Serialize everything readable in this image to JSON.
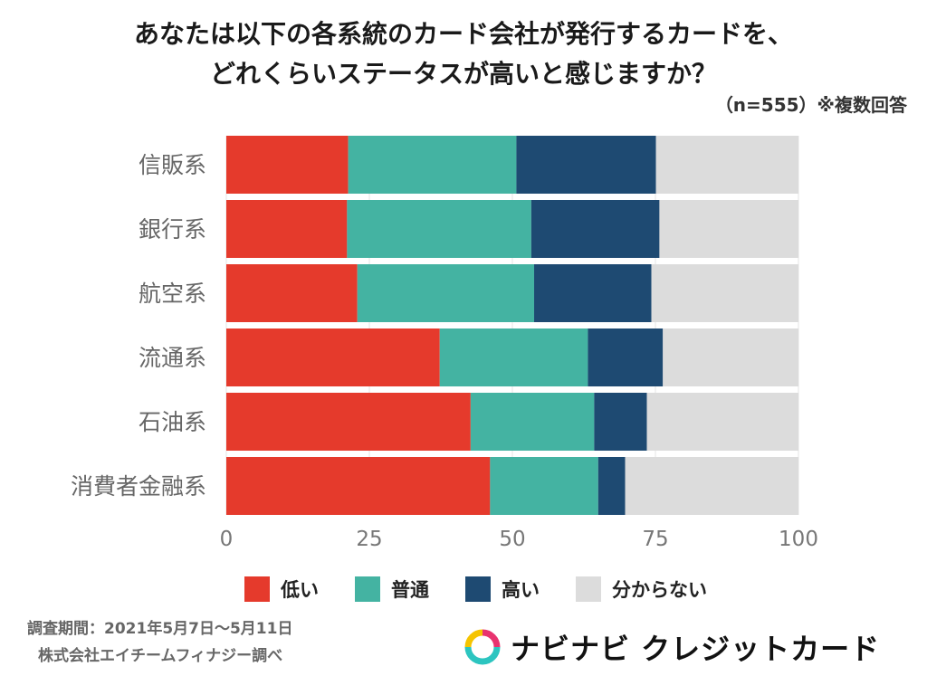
{
  "title_line1": "あなたは以下の各系統のカード会社が発行するカードを、",
  "title_line2": "どれくらいステータスが高いと感じますか？",
  "note": "（n=555）※複数回答",
  "footer": {
    "period": "調査期間：2021年5月7日〜5月11日",
    "surveyor": "株式会社エイチームフィナジー調べ"
  },
  "logo_text": "ナビナビ クレジットカード",
  "colors": {
    "低い": "#e53a2c",
    "普通": "#44b3a2",
    "高い": "#1e4a72",
    "分からない": "#dcdcdc"
  },
  "chart_data": {
    "type": "bar",
    "orientation": "horizontal",
    "stacked": true,
    "categories": [
      "信販系",
      "銀行系",
      "航空系",
      "流通系",
      "石油系",
      "消費者金融系"
    ],
    "series": [
      {
        "name": "低い",
        "values": [
          21.3,
          21.1,
          22.9,
          37.3,
          42.7,
          46.1
        ]
      },
      {
        "name": "普通",
        "values": [
          29.4,
          32.2,
          30.9,
          25.9,
          21.6,
          18.9
        ]
      },
      {
        "name": "高い",
        "values": [
          24.4,
          22.4,
          20.5,
          13.1,
          9.2,
          4.7
        ]
      },
      {
        "name": "分からない",
        "values": [
          24.9,
          24.3,
          25.7,
          23.7,
          26.5,
          30.3
        ]
      }
    ],
    "xlim": [
      0,
      100
    ],
    "xticks": [
      "0",
      "25",
      "50",
      "75",
      "100"
    ],
    "grid": true,
    "legend": "bottom"
  }
}
